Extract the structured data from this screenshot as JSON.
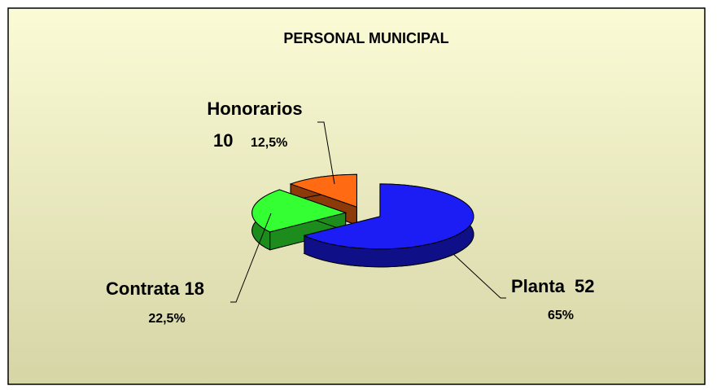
{
  "chart_data": {
    "type": "pie",
    "title": "PERSONAL MUNICIPAL",
    "categories": [
      "Planta",
      "Contrata",
      "Honorarios"
    ],
    "values": [
      52,
      18,
      10
    ],
    "percentages": [
      65,
      22.5,
      12.5
    ],
    "percentage_labels": [
      "65%",
      "22,5%",
      "12,5%"
    ],
    "colors": [
      "#1c1cf5",
      "#33ff33",
      "#ff6a13"
    ]
  }
}
